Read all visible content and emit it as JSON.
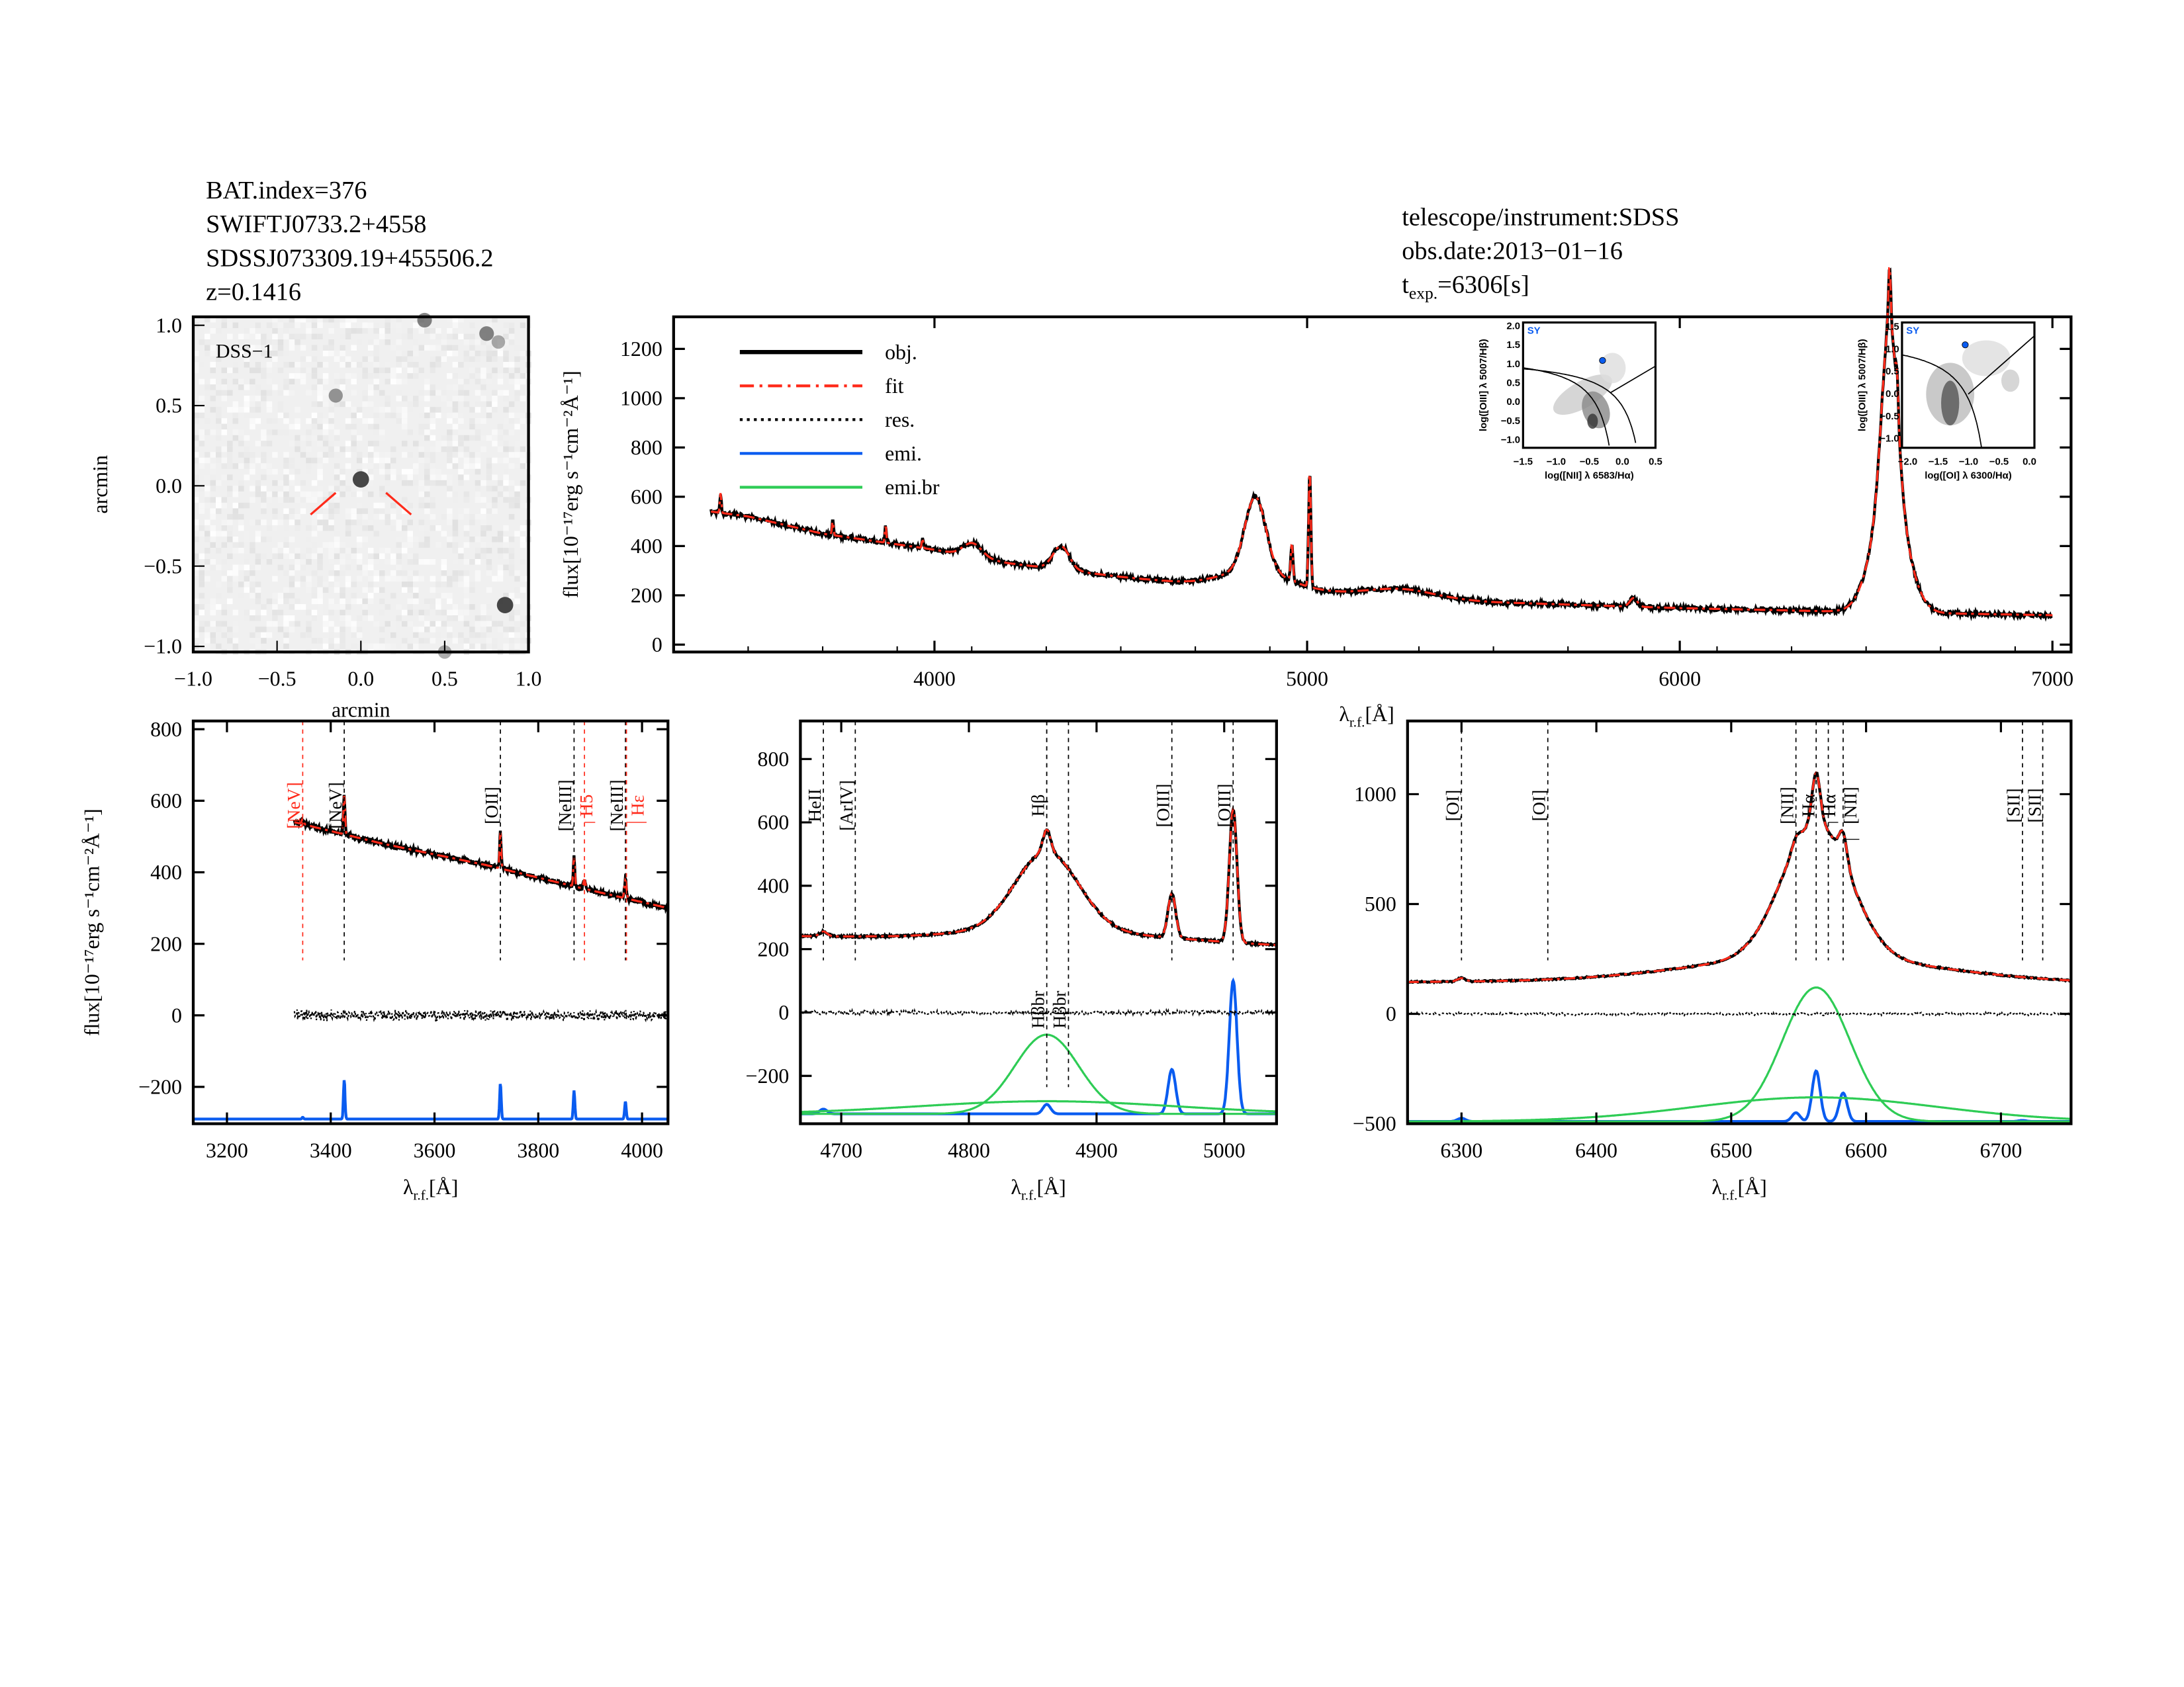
{
  "header_left": [
    "BAT.index=376",
    "SWIFTJ0733.2+4558",
    "SDSSJ073309.19+455506.2",
    "z=0.1416"
  ],
  "header_right": {
    "line1": "telescope/instrument:SDSS",
    "line2": "obs.date:2013−01−16",
    "line3_main": "t",
    "line3_sub": "exp.",
    "line3_rest": "=6306[s]"
  },
  "colors": {
    "obj": "#000000",
    "fit": "#ff2a1a",
    "res": "#000000",
    "emi": "#0a5cf0",
    "emi_br": "#2ecc55",
    "marker_red": "#ff2a1a"
  },
  "chart_data": [
    {
      "type": "image",
      "panel": "dss",
      "label": "DSS−1",
      "xlim": [
        -1,
        1
      ],
      "ylim": [
        -1,
        1
      ],
      "xticks": [
        "−1.0",
        "−0.5",
        "0.0",
        "0.5",
        "1.0"
      ],
      "yticks": [
        "−1.0",
        "−0.5",
        "0.0",
        "0.5",
        "1.0"
      ],
      "xlabel": "arcmin",
      "ylabel": "arcmin",
      "sources": [
        [
          0,
          0.03,
          0.9
        ],
        [
          0.38,
          0.98,
          0.6
        ],
        [
          0.75,
          0.9,
          0.6
        ],
        [
          0.86,
          -0.72,
          0.9
        ],
        [
          -0.15,
          0.53,
          0.5
        ],
        [
          0.5,
          -1.0,
          0.4
        ],
        [
          0.82,
          0.85,
          0.4
        ]
      ]
    },
    {
      "type": "line",
      "panel": "overview",
      "xlim": [
        3300,
        7050
      ],
      "ylim": [
        -30,
        1330
      ],
      "xticks": [
        4000,
        5000,
        6000,
        7000
      ],
      "yticks": [
        0,
        200,
        400,
        600,
        800,
        1000,
        1200
      ],
      "xlabel": "λ",
      "xlabel_sub": "r.f.",
      "xlabel_unit": "[Å]",
      "ylabel": "flux[10⁻¹⁷erg s⁻¹cm⁻²Å⁻¹]",
      "legend": {
        "position": "top-left",
        "entries": [
          "obj.",
          "fit",
          "res.",
          "emi.",
          "emi.br"
        ]
      },
      "continuum": [
        [
          3300,
          560
        ],
        [
          3500,
          520
        ],
        [
          3700,
          450
        ],
        [
          4000,
          385
        ],
        [
          4200,
          330
        ],
        [
          4500,
          275
        ],
        [
          4700,
          245
        ],
        [
          5000,
          215
        ],
        [
          5200,
          195
        ],
        [
          5500,
          172
        ],
        [
          6000,
          148
        ],
        [
          6500,
          132
        ],
        [
          7050,
          118
        ]
      ],
      "lines": [
        [
          3426,
          80,
          2
        ],
        [
          3727,
          60,
          2
        ],
        [
          3869,
          70,
          2
        ],
        [
          3968,
          40,
          2
        ],
        [
          4102,
          55,
          25
        ],
        [
          4340,
          95,
          22
        ],
        [
          4861,
          300,
          28
        ],
        [
          4861,
          70,
          90
        ],
        [
          4959,
          150,
          3
        ],
        [
          5007,
          470,
          3
        ],
        [
          5250,
          35,
          90
        ],
        [
          5876,
          35,
          10
        ],
        [
          6563,
          700,
          20
        ],
        [
          6563,
          480,
          45
        ],
        [
          6563,
          230,
          3
        ],
        [
          6583,
          130,
          3
        ]
      ]
    },
    {
      "type": "line",
      "panel": "zoom-blue",
      "xlim": [
        3135,
        4050
      ],
      "ylim": [
        -303,
        823
      ],
      "xticks": [
        3200,
        3400,
        3600,
        3800,
        4000
      ],
      "yticks": [
        -200,
        0,
        200,
        400,
        600,
        800
      ],
      "xlabel": "λ",
      "xlabel_sub": "r.f.",
      "xlabel_unit": "[Å]",
      "ylabel": "flux[10⁻¹⁷erg s⁻¹cm⁻²Å⁻¹]",
      "data_range": [
        3330,
        4050
      ],
      "continuum": [
        [
          3330,
          540
        ],
        [
          3500,
          480
        ],
        [
          3700,
          420
        ],
        [
          3900,
          350
        ],
        [
          4050,
          300
        ]
      ],
      "lines": [
        [
          3346,
          15,
          2
        ],
        [
          3426,
          110,
          1.5
        ],
        [
          3727,
          100,
          1.5
        ],
        [
          3869,
          80,
          1.5
        ],
        [
          3889,
          25,
          2
        ],
        [
          3968,
          50,
          2
        ]
      ],
      "emi_baseline": -290,
      "emi": [
        [
          3346,
          5,
          1.5
        ],
        [
          3426,
          110,
          1.5
        ],
        [
          3727,
          100,
          1.5
        ],
        [
          3869,
          80,
          1.5
        ],
        [
          3968,
          50,
          1.5
        ]
      ],
      "emi_br": [],
      "markers": [
        {
          "x": 3346,
          "label": "[NeV]",
          "color": "red"
        },
        {
          "x": 3426,
          "label": "[NeV]",
          "color": "black"
        },
        {
          "x": 3727,
          "label": "[OII]",
          "color": "black"
        },
        {
          "x": 3869,
          "label": "[NeIII]",
          "color": "black"
        },
        {
          "x": 3889,
          "label": "H5",
          "color": "red"
        },
        {
          "x": 3968,
          "label": "[NeIII]",
          "color": "black"
        },
        {
          "x": 3970,
          "label": "Hε",
          "color": "red"
        }
      ]
    },
    {
      "type": "line",
      "panel": "zoom-hbeta",
      "xlim": [
        4668,
        5041
      ],
      "ylim": [
        -351,
        920
      ],
      "xticks": [
        4700,
        4800,
        4900,
        5000
      ],
      "yticks": [
        -200,
        0,
        200,
        400,
        600,
        800
      ],
      "xlabel": "λ",
      "xlabel_sub": "r.f.",
      "xlabel_unit": "[Å]",
      "data_range": [
        4668,
        5041
      ],
      "continuum": [
        [
          4668,
          235
        ],
        [
          4750,
          220
        ],
        [
          4900,
          215
        ],
        [
          5041,
          205
        ]
      ],
      "lines": [
        [
          4686,
          15,
          3
        ],
        [
          4861,
          70,
          3
        ],
        [
          4861,
          250,
          25
        ],
        [
          4861,
          40,
          100
        ],
        [
          4959,
          140,
          3
        ],
        [
          5007,
          420,
          3
        ]
      ],
      "emi_baseline": -320,
      "emi": [
        [
          4686,
          15,
          3
        ],
        [
          4861,
          30,
          3
        ],
        [
          4959,
          140,
          3
        ],
        [
          5007,
          420,
          3
        ]
      ],
      "emi_br": [
        [
          4861,
          250,
          25
        ],
        [
          4861,
          40,
          100
        ]
      ],
      "markers": [
        {
          "x": 4686,
          "label": "HeII",
          "color": "black"
        },
        {
          "x": 4711,
          "label": "[ArIV]",
          "color": "black"
        },
        {
          "x": 4861,
          "label": "Hβ",
          "color": "black"
        },
        {
          "x": 4959,
          "label": "[OIII]",
          "color": "black"
        },
        {
          "x": 5007,
          "label": "[OIII]",
          "color": "black"
        },
        {
          "x": 4861,
          "label": "Hβbr",
          "color": "black",
          "low": true
        },
        {
          "x": 4878,
          "label": "Hβbr",
          "color": "black",
          "low": true
        }
      ]
    },
    {
      "type": "line",
      "panel": "zoom-halpha",
      "xlim": [
        6260,
        6752
      ],
      "ylim": [
        -500,
        1333
      ],
      "xticks": [
        6300,
        6400,
        6500,
        6600,
        6700
      ],
      "yticks": [
        -500,
        0,
        500,
        1000
      ],
      "xlabel": "λ",
      "xlabel_sub": "r.f.",
      "xlabel_unit": "[Å]",
      "data_range": [
        6260,
        6752
      ],
      "continuum": [
        [
          6260,
          145
        ],
        [
          6500,
          150
        ],
        [
          6752,
          140
        ]
      ],
      "lines": [
        [
          6300,
          15,
          3
        ],
        [
          6548,
          40,
          3
        ],
        [
          6563,
          230,
          3
        ],
        [
          6583,
          130,
          3
        ],
        [
          6563,
          610,
          25
        ],
        [
          6563,
          110,
          90
        ]
      ],
      "emi_baseline": -490,
      "emi": [
        [
          6300,
          15,
          3
        ],
        [
          6364,
          5,
          3
        ],
        [
          6548,
          40,
          3
        ],
        [
          6563,
          230,
          3
        ],
        [
          6583,
          130,
          3
        ],
        [
          6716,
          5,
          3
        ]
      ],
      "emi_br": [
        [
          6563,
          610,
          25
        ],
        [
          6563,
          110,
          90
        ]
      ],
      "markers": [
        {
          "x": 6300,
          "label": "[OI]",
          "color": "black"
        },
        {
          "x": 6364,
          "label": "[OI]",
          "color": "black"
        },
        {
          "x": 6548,
          "label": "[NII]",
          "color": "black"
        },
        {
          "x": 6583,
          "label": "[NII]",
          "color": "black"
        },
        {
          "x": 6563,
          "label": "Hα",
          "color": "black"
        },
        {
          "x": 6572,
          "label": "Hα",
          "color": "black"
        },
        {
          "x": 6716,
          "label": "[SII]",
          "color": "black"
        },
        {
          "x": 6731,
          "label": "[SII]",
          "color": "black"
        }
      ]
    },
    {
      "type": "heatmap",
      "panel": "bpt-nii",
      "label": "SY",
      "xlim": [
        -1.5,
        0.5
      ],
      "ylim": [
        -1.2,
        2.1
      ],
      "xticks": [
        "−1.5",
        "−1.0",
        "−0.5",
        "0.0",
        "0.5"
      ],
      "yticks": [
        "−1.0",
        "−0.5",
        "0.0",
        "0.5",
        "1.0",
        "1.5",
        "2.0"
      ],
      "xlabel": "log([NII] λ 6583/Hα)",
      "ylabel": "log([OIII] λ 5007/Hβ)",
      "point": [
        -0.3,
        1.1
      ]
    },
    {
      "type": "heatmap",
      "panel": "bpt-oi",
      "label": "SY",
      "xlim": [
        -2.2,
        0.0
      ],
      "ylim": [
        -1.2,
        1.6
      ],
      "xticks": [
        "−2.0",
        "−1.5",
        "−1.0",
        "−0.5",
        "0.0"
      ],
      "yticks": [
        "−1.0",
        "−0.5",
        "0.0",
        "0.5",
        "1.0",
        "1.5"
      ],
      "xlabel": "log([OI] λ 6300/Hα)",
      "ylabel": "log([OIII] λ 5007/Hβ)",
      "point": [
        -1.15,
        1.1
      ]
    }
  ]
}
